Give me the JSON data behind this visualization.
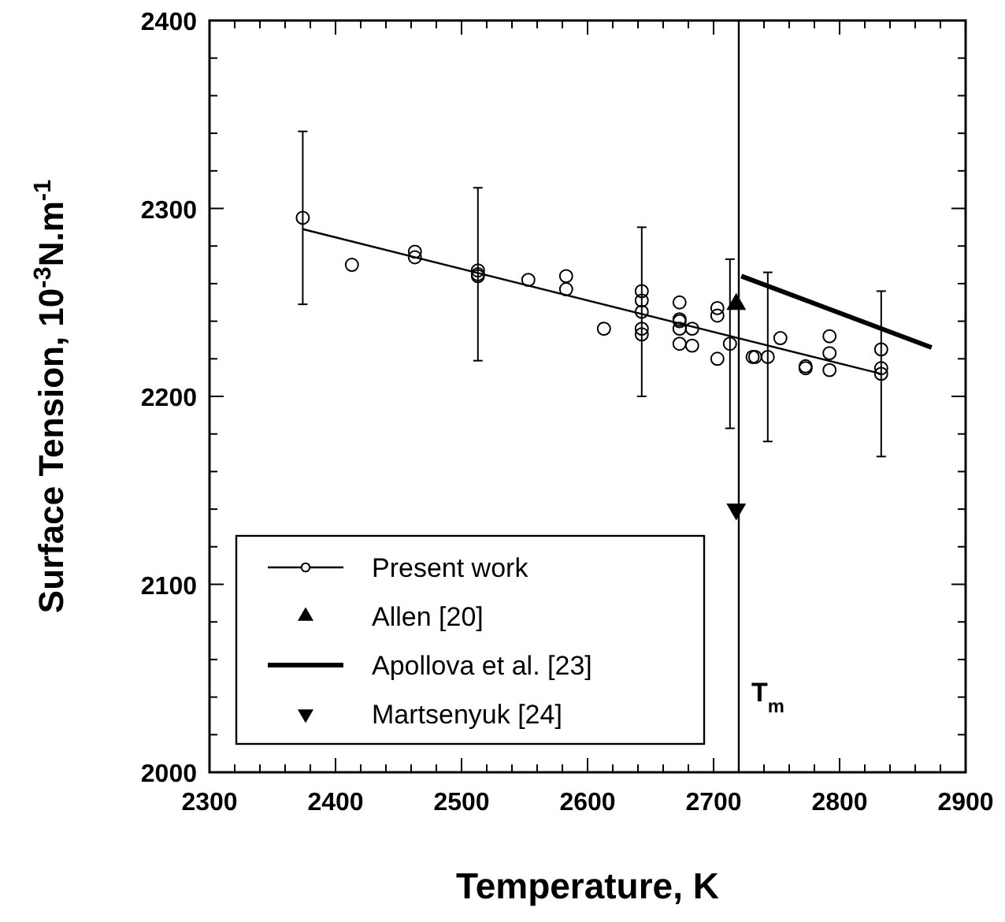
{
  "chart_data": {
    "type": "scatter",
    "xlabel": "Temperature, K",
    "ylabel": "Surface Tension, 10$^{-3}$N.m$^{-1}$",
    "xlim": [
      2300,
      2900
    ],
    "ylim": [
      2000,
      2400
    ],
    "xticks": [
      2300,
      {
        "value": 2320,
        "label": null
      },
      {
        "value": 2340,
        "label": null
      },
      {
        "value": 2360,
        "label": null
      },
      {
        "value": 2380,
        "label": null
      },
      2400,
      {
        "value": 2420,
        "label": null
      },
      {
        "value": 2440,
        "label": null
      },
      {
        "value": 2460,
        "label": null
      },
      {
        "value": 2480,
        "label": null
      },
      2500,
      {
        "value": 2520,
        "label": null
      },
      {
        "value": 2540,
        "label": null
      },
      {
        "value": 2560,
        "label": null
      },
      {
        "value": 2580,
        "label": null
      },
      2600,
      {
        "value": 2620,
        "label": null
      },
      {
        "value": 2640,
        "label": null
      },
      {
        "value": 2660,
        "label": null
      },
      {
        "value": 2680,
        "label": null
      },
      2700,
      {
        "value": 2720,
        "label": null
      },
      {
        "value": 2740,
        "label": null
      },
      {
        "value": 2760,
        "label": null
      },
      {
        "value": 2780,
        "label": null
      },
      2800,
      {
        "value": 2820,
        "label": null
      },
      {
        "value": 2840,
        "label": null
      },
      {
        "value": 2860,
        "label": null
      },
      {
        "value": 2880,
        "label": null
      },
      2900
    ],
    "yticks": [
      2000,
      {
        "value": 2020,
        "label": null
      },
      {
        "value": 2040,
        "label": null
      },
      {
        "value": 2060,
        "label": null
      },
      {
        "value": 2080,
        "label": null
      },
      2100,
      {
        "value": 2120,
        "label": null
      },
      {
        "value": 2140,
        "label": null
      },
      {
        "value": 2160,
        "label": null
      },
      {
        "value": 2180,
        "label": null
      },
      2200,
      {
        "value": 2220,
        "label": null
      },
      {
        "value": 2240,
        "label": null
      },
      {
        "value": 2260,
        "label": null
      },
      {
        "value": 2280,
        "label": null
      },
      2300,
      {
        "value": 2320,
        "label": null
      },
      {
        "value": 2340,
        "label": null
      },
      {
        "value": 2360,
        "label": null
      },
      {
        "value": 2380,
        "label": null
      },
      2400
    ],
    "grid": false,
    "legend": "bottom left",
    "ref_lines": [
      {
        "axis": "x",
        "value": 2720,
        "label": "T$_{m}$",
        "color": "#000000"
      }
    ],
    "series": [
      {
        "name": "Present work",
        "marker": "circle",
        "color": "#000000",
        "x": [
          2374,
          2413,
          2463,
          2463,
          2513,
          2513,
          2513,
          2553,
          2583,
          2583,
          2613,
          2643,
          2643,
          2643,
          2643,
          2643,
          2673,
          2673,
          2673,
          2673,
          2673,
          2683,
          2683,
          2703,
          2703,
          2703,
          2713,
          2731,
          2733,
          2743,
          2753,
          2773,
          2773,
          2792,
          2792,
          2792,
          2833,
          2833,
          2833
        ],
        "values": [
          2295,
          2270,
          2277,
          2274,
          2267,
          2265,
          2264,
          2262,
          2264,
          2257,
          2236,
          2256,
          2251,
          2245,
          2236,
          2233,
          2250,
          2241,
          2240,
          2236,
          2228,
          2236,
          2227,
          2247,
          2243,
          2220,
          2228,
          2221,
          2221,
          2221,
          2231,
          2215,
          2216,
          2232,
          2223,
          2214,
          2225,
          2215,
          2212
        ],
        "errors": [
          46,
          null,
          null,
          null,
          null,
          46,
          null,
          null,
          null,
          null,
          null,
          null,
          null,
          45,
          null,
          null,
          null,
          null,
          null,
          null,
          null,
          null,
          null,
          null,
          null,
          null,
          45,
          null,
          null,
          45,
          null,
          null,
          null,
          null,
          null,
          null,
          null,
          null,
          44
        ]
      },
      {
        "type": "line",
        "marker": "none",
        "color": "#000000",
        "x": [
          2374,
          2833
        ],
        "values": [
          2289,
          2212
        ]
      },
      {
        "name": "Allen [20]",
        "marker": "triangle",
        "color": "#000000",
        "x": [
          2718
        ],
        "values": [
          2249
        ]
      },
      {
        "name": "Apollova et al. [23]",
        "type": "line",
        "marker": "none",
        "color": "#000000",
        "x": [
          2722,
          2873
        ],
        "values": [
          2264,
          2226
        ]
      },
      {
        "name": "Martsenyuk [24]",
        "marker": "triangle-down",
        "color": "#000000",
        "x": [
          2718
        ],
        "values": [
          2140
        ]
      }
    ]
  }
}
